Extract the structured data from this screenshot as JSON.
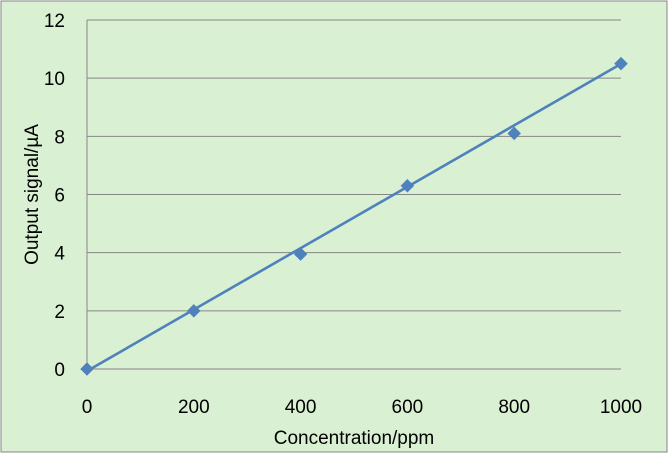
{
  "chart_data": {
    "type": "scatter",
    "title": "",
    "xlabel": "Concentration/ppm",
    "ylabel": "Output signal/µA",
    "xlim": [
      0,
      1000
    ],
    "ylim": [
      0,
      12
    ],
    "x_ticks": [
      "0",
      "200",
      "400",
      "600",
      "800",
      "1000"
    ],
    "y_ticks": [
      "0",
      "2",
      "4",
      "6",
      "8",
      "10",
      "12"
    ],
    "grid": "horizontal",
    "legend": "none",
    "series": [
      {
        "x": [
          0,
          200,
          400,
          600,
          800,
          1000
        ],
        "y": [
          0,
          2.0,
          3.95,
          6.3,
          8.1,
          10.5
        ],
        "marker": "diamond",
        "color": "#4f81bd"
      }
    ],
    "trendline": {
      "type": "linear",
      "x": [
        0,
        1000
      ],
      "y": [
        -0.07,
        10.49
      ],
      "color": "#4f81bd"
    },
    "colors": {
      "background": "#d9f0d3",
      "grid": "#868686",
      "border": "#868686"
    }
  }
}
